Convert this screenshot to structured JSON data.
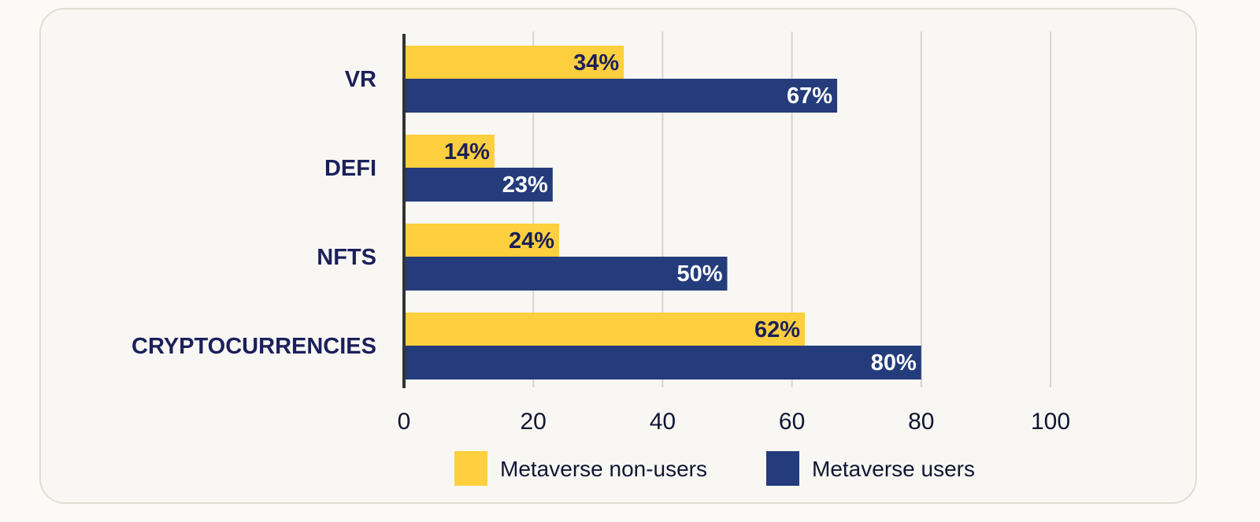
{
  "chart_data": {
    "type": "bar",
    "orientation": "horizontal",
    "categories": [
      "VR",
      "DEFI",
      "NFTS",
      "CRYPTOCURRENCIES"
    ],
    "series": [
      {
        "name": "Metaverse non-users",
        "values": [
          34,
          14,
          24,
          62
        ],
        "labels": [
          "34%",
          "14%",
          "24%",
          "62%"
        ],
        "color": "#fecf3e",
        "label_color": "#1b1f5c"
      },
      {
        "name": "Metaverse users",
        "values": [
          67,
          23,
          50,
          80
        ],
        "labels": [
          "67%",
          "23%",
          "50%",
          "80%"
        ],
        "color": "#243c7b",
        "label_color": "#ffffff"
      }
    ],
    "xlim": [
      0,
      100
    ],
    "xticks": [
      "0",
      "20",
      "40",
      "60",
      "80",
      "100"
    ],
    "grid": true,
    "legend": "bottom"
  }
}
